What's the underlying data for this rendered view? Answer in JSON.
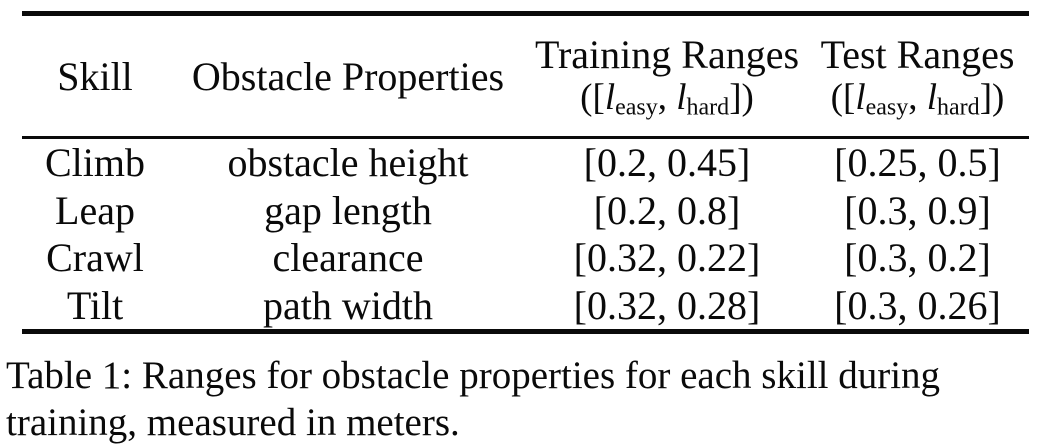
{
  "colors": {
    "background": "#ffffff",
    "text": "#0a0a0a",
    "rule": "#0a0a0a"
  },
  "table": {
    "headers": {
      "skill": "Skill",
      "obstacle_properties": "Obstacle Properties",
      "training_ranges_title": "Training Ranges",
      "test_ranges_title": "Test Ranges",
      "range_notation": {
        "open": "([",
        "var1": "l",
        "sub1": "easy",
        "sep": ", ",
        "var2": "l",
        "sub2": "hard",
        "close": "])"
      }
    },
    "rows": [
      {
        "skill": "Climb",
        "property": "obstacle height",
        "training_range": "[0.2, 0.45]",
        "test_range": "[0.25, 0.5]"
      },
      {
        "skill": "Leap",
        "property": "gap length",
        "training_range": "[0.2, 0.8]",
        "test_range": "[0.3, 0.9]"
      },
      {
        "skill": "Crawl",
        "property": "clearance",
        "training_range": "[0.32, 0.22]",
        "test_range": "[0.3, 0.2]"
      },
      {
        "skill": "Tilt",
        "property": "path width",
        "training_range": "[0.32, 0.28]",
        "test_range": "[0.3, 0.26]"
      }
    ]
  },
  "caption": {
    "line1": "Table 1: Ranges for obstacle properties for each skill during",
    "line2": "training, measured in meters."
  }
}
